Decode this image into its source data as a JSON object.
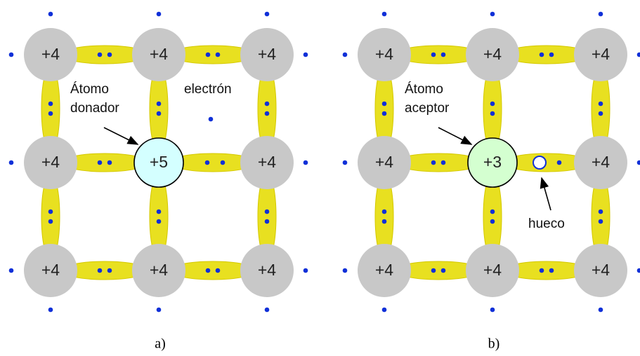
{
  "panels": [
    {
      "atoms": [
        "+4",
        "+4",
        "+4",
        "+4",
        "+5",
        "+4",
        "+4",
        "+4",
        "+4"
      ],
      "impurity_label": [
        "Átomo",
        "donador"
      ],
      "extra_label": "electrón",
      "caption": "a)"
    },
    {
      "atoms": [
        "+4",
        "+4",
        "+4",
        "+4",
        "+3",
        "+4",
        "+4",
        "+4",
        "+4"
      ],
      "impurity_label": [
        "Átomo",
        "aceptor"
      ],
      "extra_label": "hueco",
      "caption": "b)"
    }
  ]
}
